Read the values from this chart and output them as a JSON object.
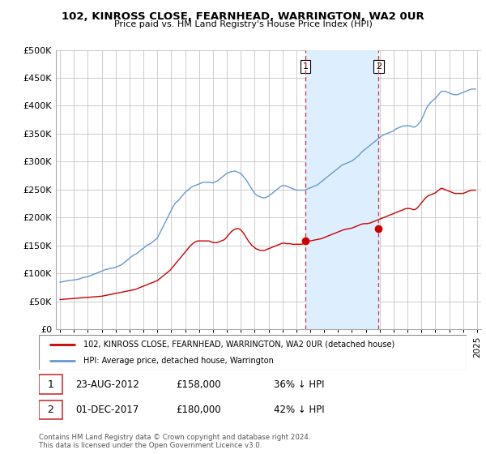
{
  "title": "102, KINROSS CLOSE, FEARNHEAD, WARRINGTON, WA2 0UR",
  "subtitle": "Price paid vs. HM Land Registry's House Price Index (HPI)",
  "legend_line1": "102, KINROSS CLOSE, FEARNHEAD, WARRINGTON, WA2 0UR (detached house)",
  "legend_line2": "HPI: Average price, detached house, Warrington",
  "annotation1_date": "23-AUG-2012",
  "annotation1_price": "£158,000",
  "annotation1_hpi": "36% ↓ HPI",
  "annotation2_date": "01-DEC-2017",
  "annotation2_price": "£180,000",
  "annotation2_hpi": "42% ↓ HPI",
  "footer": "Contains HM Land Registry data © Crown copyright and database right 2024.\nThis data is licensed under the Open Government Licence v3.0.",
  "red_color": "#cc0000",
  "blue_color": "#6699cc",
  "shade_color": "#ddeeff",
  "vline_color": "#cc3333",
  "point1_x": 2012.65,
  "point2_x": 2017.92,
  "point1_y": 158000,
  "point2_y": 180000,
  "xmin": 1994.7,
  "xmax": 2025.3,
  "ymin": 0,
  "ymax": 500000,
  "yticks": [
    0,
    50000,
    100000,
    150000,
    200000,
    250000,
    300000,
    350000,
    400000,
    450000,
    500000
  ],
  "ytick_labels": [
    "£0",
    "£50K",
    "£100K",
    "£150K",
    "£200K",
    "£250K",
    "£300K",
    "£350K",
    "£400K",
    "£450K",
    "£500K"
  ],
  "hpi_x": [
    1995.0,
    1995.1,
    1995.2,
    1995.3,
    1995.4,
    1995.5,
    1995.6,
    1995.7,
    1995.8,
    1995.9,
    1996.0,
    1996.1,
    1996.2,
    1996.3,
    1996.4,
    1996.5,
    1996.6,
    1996.7,
    1996.8,
    1996.9,
    1997.0,
    1997.1,
    1997.2,
    1997.3,
    1997.4,
    1997.5,
    1997.6,
    1997.7,
    1997.8,
    1997.9,
    1998.0,
    1998.1,
    1998.2,
    1998.3,
    1998.4,
    1998.5,
    1998.6,
    1998.7,
    1998.8,
    1998.9,
    1999.0,
    1999.1,
    1999.2,
    1999.3,
    1999.4,
    1999.5,
    1999.6,
    1999.7,
    1999.8,
    1999.9,
    2000.0,
    2000.1,
    2000.2,
    2000.3,
    2000.4,
    2000.5,
    2000.6,
    2000.7,
    2000.8,
    2000.9,
    2001.0,
    2001.1,
    2001.2,
    2001.3,
    2001.4,
    2001.5,
    2001.6,
    2001.7,
    2001.8,
    2001.9,
    2002.0,
    2002.1,
    2002.2,
    2002.3,
    2002.4,
    2002.5,
    2002.6,
    2002.7,
    2002.8,
    2002.9,
    2003.0,
    2003.1,
    2003.2,
    2003.3,
    2003.4,
    2003.5,
    2003.6,
    2003.7,
    2003.8,
    2003.9,
    2004.0,
    2004.1,
    2004.2,
    2004.3,
    2004.4,
    2004.5,
    2004.6,
    2004.7,
    2004.8,
    2004.9,
    2005.0,
    2005.1,
    2005.2,
    2005.3,
    2005.4,
    2005.5,
    2005.6,
    2005.7,
    2005.8,
    2005.9,
    2006.0,
    2006.1,
    2006.2,
    2006.3,
    2006.4,
    2006.5,
    2006.6,
    2006.7,
    2006.8,
    2006.9,
    2007.0,
    2007.1,
    2007.2,
    2007.3,
    2007.4,
    2007.5,
    2007.6,
    2007.7,
    2007.8,
    2007.9,
    2008.0,
    2008.1,
    2008.2,
    2008.3,
    2008.4,
    2008.5,
    2008.6,
    2008.7,
    2008.8,
    2008.9,
    2009.0,
    2009.1,
    2009.2,
    2009.3,
    2009.4,
    2009.5,
    2009.6,
    2009.7,
    2009.8,
    2009.9,
    2010.0,
    2010.1,
    2010.2,
    2010.3,
    2010.4,
    2010.5,
    2010.6,
    2010.7,
    2010.8,
    2010.9,
    2011.0,
    2011.1,
    2011.2,
    2011.3,
    2011.4,
    2011.5,
    2011.6,
    2011.7,
    2011.8,
    2011.9,
    2012.0,
    2012.1,
    2012.2,
    2012.3,
    2012.4,
    2012.5,
    2012.6,
    2012.7,
    2012.8,
    2012.9,
    2013.0,
    2013.1,
    2013.2,
    2013.3,
    2013.4,
    2013.5,
    2013.6,
    2013.7,
    2013.8,
    2013.9,
    2014.0,
    2014.1,
    2014.2,
    2014.3,
    2014.4,
    2014.5,
    2014.6,
    2014.7,
    2014.8,
    2014.9,
    2015.0,
    2015.1,
    2015.2,
    2015.3,
    2015.4,
    2015.5,
    2015.6,
    2015.7,
    2015.8,
    2015.9,
    2016.0,
    2016.1,
    2016.2,
    2016.3,
    2016.4,
    2016.5,
    2016.6,
    2016.7,
    2016.8,
    2016.9,
    2017.0,
    2017.1,
    2017.2,
    2017.3,
    2017.4,
    2017.5,
    2017.6,
    2017.7,
    2017.8,
    2017.9,
    2018.0,
    2018.1,
    2018.2,
    2018.3,
    2018.4,
    2018.5,
    2018.6,
    2018.7,
    2018.8,
    2018.9,
    2019.0,
    2019.1,
    2019.2,
    2019.3,
    2019.4,
    2019.5,
    2019.6,
    2019.7,
    2019.8,
    2019.9,
    2020.0,
    2020.1,
    2020.2,
    2020.3,
    2020.4,
    2020.5,
    2020.6,
    2020.7,
    2020.8,
    2020.9,
    2021.0,
    2021.1,
    2021.2,
    2021.3,
    2021.4,
    2021.5,
    2021.6,
    2021.7,
    2021.8,
    2021.9,
    2022.0,
    2022.1,
    2022.2,
    2022.3,
    2022.4,
    2022.5,
    2022.6,
    2022.7,
    2022.8,
    2022.9,
    2023.0,
    2023.1,
    2023.2,
    2023.3,
    2023.4,
    2023.5,
    2023.6,
    2023.7,
    2023.8,
    2023.9,
    2024.0,
    2024.1,
    2024.2,
    2024.3,
    2024.4,
    2024.5,
    2024.6,
    2024.7,
    2024.8,
    2024.9
  ],
  "hpi_y": [
    84000,
    84500,
    85000,
    85500,
    86000,
    86500,
    87000,
    87200,
    87500,
    87800,
    88000,
    88500,
    89000,
    89500,
    90000,
    91000,
    92000,
    92500,
    93000,
    93500,
    94000,
    95000,
    96000,
    97000,
    98000,
    99000,
    100000,
    101000,
    102000,
    103000,
    104000,
    105000,
    106000,
    107000,
    107500,
    108000,
    108500,
    109000,
    109500,
    110000,
    111000,
    112000,
    113000,
    114000,
    115000,
    117000,
    119000,
    121000,
    123000,
    125000,
    127000,
    129000,
    131000,
    133000,
    134000,
    135000,
    137000,
    139000,
    141000,
    143000,
    145000,
    147000,
    149000,
    151000,
    152000,
    153000,
    155000,
    157000,
    159000,
    161000,
    163000,
    168000,
    173000,
    178000,
    183000,
    188000,
    193000,
    198000,
    203000,
    208000,
    213000,
    218000,
    222000,
    226000,
    228000,
    230000,
    233000,
    236000,
    239000,
    242000,
    245000,
    247000,
    249000,
    251000,
    253000,
    255000,
    256000,
    257000,
    258000,
    259000,
    260000,
    261000,
    262000,
    263000,
    263000,
    263000,
    263000,
    263000,
    263000,
    262000,
    262000,
    263000,
    264000,
    265000,
    267000,
    269000,
    271000,
    273000,
    275000,
    277000,
    279000,
    280000,
    281000,
    282000,
    282000,
    283000,
    283000,
    282000,
    281000,
    280000,
    279000,
    276000,
    273000,
    270000,
    267000,
    263000,
    259000,
    255000,
    251000,
    247000,
    243000,
    241000,
    239000,
    238000,
    237000,
    236000,
    235000,
    235000,
    236000,
    237000,
    238000,
    240000,
    242000,
    244000,
    246000,
    248000,
    250000,
    252000,
    254000,
    256000,
    257000,
    257000,
    257000,
    256000,
    255000,
    254000,
    253000,
    252000,
    251000,
    250000,
    249000,
    249000,
    249000,
    249000,
    249000,
    249000,
    249000,
    250000,
    251000,
    252000,
    253000,
    254000,
    255000,
    256000,
    257000,
    258000,
    260000,
    262000,
    264000,
    266000,
    268000,
    270000,
    272000,
    274000,
    276000,
    278000,
    280000,
    282000,
    284000,
    286000,
    288000,
    290000,
    292000,
    294000,
    295000,
    296000,
    297000,
    298000,
    299000,
    300000,
    301000,
    303000,
    305000,
    307000,
    309000,
    311000,
    314000,
    317000,
    319000,
    321000,
    323000,
    325000,
    327000,
    329000,
    331000,
    333000,
    335000,
    337000,
    339000,
    341000,
    343000,
    345000,
    347000,
    348000,
    349000,
    350000,
    351000,
    352000,
    353000,
    354000,
    355000,
    357000,
    359000,
    360000,
    361000,
    362000,
    363000,
    364000,
    364000,
    364000,
    364000,
    364000,
    364000,
    363000,
    362000,
    362000,
    363000,
    365000,
    368000,
    371000,
    375000,
    380000,
    386000,
    392000,
    397000,
    401000,
    404000,
    407000,
    409000,
    411000,
    413000,
    416000,
    419000,
    422000,
    425000,
    426000,
    426000,
    426000,
    425000,
    424000,
    423000,
    422000,
    421000,
    420000,
    420000,
    420000,
    420000,
    421000,
    422000,
    423000,
    424000,
    425000,
    426000,
    427000,
    428000,
    429000,
    430000,
    430000,
    430000,
    430000
  ],
  "price_x": [
    1995.0,
    1995.1,
    1995.2,
    1995.3,
    1995.4,
    1995.5,
    1995.6,
    1995.7,
    1995.8,
    1995.9,
    1996.0,
    1996.1,
    1996.2,
    1996.3,
    1996.4,
    1996.5,
    1996.6,
    1996.7,
    1996.8,
    1996.9,
    1997.0,
    1997.1,
    1997.2,
    1997.3,
    1997.4,
    1997.5,
    1997.6,
    1997.7,
    1997.8,
    1997.9,
    1998.0,
    1998.1,
    1998.2,
    1998.3,
    1998.4,
    1998.5,
    1998.6,
    1998.7,
    1998.8,
    1998.9,
    1999.0,
    1999.1,
    1999.2,
    1999.3,
    1999.4,
    1999.5,
    1999.6,
    1999.7,
    1999.8,
    1999.9,
    2000.0,
    2000.1,
    2000.2,
    2000.3,
    2000.4,
    2000.5,
    2000.6,
    2000.7,
    2000.8,
    2000.9,
    2001.0,
    2001.1,
    2001.2,
    2001.3,
    2001.4,
    2001.5,
    2001.6,
    2001.7,
    2001.8,
    2001.9,
    2002.0,
    2002.1,
    2002.2,
    2002.3,
    2002.4,
    2002.5,
    2002.6,
    2002.7,
    2002.8,
    2002.9,
    2003.0,
    2003.1,
    2003.2,
    2003.3,
    2003.4,
    2003.5,
    2003.6,
    2003.7,
    2003.8,
    2003.9,
    2004.0,
    2004.1,
    2004.2,
    2004.3,
    2004.4,
    2004.5,
    2004.6,
    2004.7,
    2004.8,
    2004.9,
    2005.0,
    2005.1,
    2005.2,
    2005.3,
    2005.4,
    2005.5,
    2005.6,
    2005.7,
    2005.8,
    2005.9,
    2006.0,
    2006.1,
    2006.2,
    2006.3,
    2006.4,
    2006.5,
    2006.6,
    2006.7,
    2006.8,
    2006.9,
    2007.0,
    2007.1,
    2007.2,
    2007.3,
    2007.4,
    2007.5,
    2007.6,
    2007.7,
    2007.8,
    2007.9,
    2008.0,
    2008.1,
    2008.2,
    2008.3,
    2008.4,
    2008.5,
    2008.6,
    2008.7,
    2008.8,
    2008.9,
    2009.0,
    2009.1,
    2009.2,
    2009.3,
    2009.4,
    2009.5,
    2009.6,
    2009.7,
    2009.8,
    2009.9,
    2010.0,
    2010.1,
    2010.2,
    2010.3,
    2010.4,
    2010.5,
    2010.6,
    2010.7,
    2010.8,
    2010.9,
    2011.0,
    2011.1,
    2011.2,
    2011.3,
    2011.4,
    2011.5,
    2011.6,
    2011.7,
    2011.8,
    2011.9,
    2012.0,
    2012.1,
    2012.2,
    2012.3,
    2012.4,
    2012.5,
    2012.6,
    2012.7,
    2012.8,
    2012.9,
    2013.0,
    2013.1,
    2013.2,
    2013.3,
    2013.4,
    2013.5,
    2013.6,
    2013.7,
    2013.8,
    2013.9,
    2014.0,
    2014.1,
    2014.2,
    2014.3,
    2014.4,
    2014.5,
    2014.6,
    2014.7,
    2014.8,
    2014.9,
    2015.0,
    2015.1,
    2015.2,
    2015.3,
    2015.4,
    2015.5,
    2015.6,
    2015.7,
    2015.8,
    2015.9,
    2016.0,
    2016.1,
    2016.2,
    2016.3,
    2016.4,
    2016.5,
    2016.6,
    2016.7,
    2016.8,
    2016.9,
    2017.0,
    2017.1,
    2017.2,
    2017.3,
    2017.4,
    2017.5,
    2017.6,
    2017.7,
    2017.8,
    2017.9,
    2018.0,
    2018.1,
    2018.2,
    2018.3,
    2018.4,
    2018.5,
    2018.6,
    2018.7,
    2018.8,
    2018.9,
    2019.0,
    2019.1,
    2019.2,
    2019.3,
    2019.4,
    2019.5,
    2019.6,
    2019.7,
    2019.8,
    2019.9,
    2020.0,
    2020.1,
    2020.2,
    2020.3,
    2020.4,
    2020.5,
    2020.6,
    2020.7,
    2020.8,
    2020.9,
    2021.0,
    2021.1,
    2021.2,
    2021.3,
    2021.4,
    2021.5,
    2021.6,
    2021.7,
    2021.8,
    2021.9,
    2022.0,
    2022.1,
    2022.2,
    2022.3,
    2022.4,
    2022.5,
    2022.6,
    2022.7,
    2022.8,
    2022.9,
    2023.0,
    2023.1,
    2023.2,
    2023.3,
    2023.4,
    2023.5,
    2023.6,
    2023.7,
    2023.8,
    2023.9,
    2024.0,
    2024.1,
    2024.2,
    2024.3,
    2024.4,
    2024.5,
    2024.6,
    2024.7,
    2024.8,
    2024.9
  ],
  "price_y": [
    53000,
    53200,
    53400,
    53600,
    53800,
    54000,
    54200,
    54400,
    54600,
    54800,
    55000,
    55200,
    55400,
    55600,
    55800,
    56000,
    56200,
    56400,
    56600,
    56800,
    57000,
    57200,
    57400,
    57600,
    57800,
    58000,
    58200,
    58400,
    58600,
    58800,
    59000,
    59500,
    60000,
    60500,
    61000,
    61500,
    62000,
    62500,
    63000,
    63500,
    64000,
    64500,
    65000,
    65500,
    66000,
    66500,
    67000,
    67500,
    68000,
    68500,
    69000,
    69500,
    70000,
    70500,
    71000,
    72000,
    73000,
    74000,
    75000,
    76000,
    77000,
    78000,
    79000,
    80000,
    81000,
    82000,
    83000,
    84000,
    85000,
    86000,
    87000,
    89000,
    91000,
    93000,
    95000,
    97000,
    99000,
    101000,
    103000,
    105000,
    108000,
    111000,
    114000,
    117000,
    120000,
    123000,
    126000,
    129000,
    132000,
    135000,
    138000,
    141000,
    144000,
    147000,
    150000,
    152000,
    154000,
    156000,
    157000,
    158000,
    158000,
    158000,
    158000,
    158000,
    158000,
    158000,
    158000,
    158000,
    157000,
    156000,
    155000,
    155000,
    155000,
    155000,
    156000,
    157000,
    158000,
    159000,
    160000,
    162000,
    165000,
    168000,
    171000,
    174000,
    176000,
    178000,
    179000,
    180000,
    180000,
    179000,
    178000,
    175000,
    172000,
    168000,
    164000,
    160000,
    156000,
    153000,
    150000,
    148000,
    146000,
    144000,
    143000,
    142000,
    141000,
    141000,
    141000,
    141000,
    142000,
    143000,
    144000,
    145000,
    146000,
    147000,
    148000,
    149000,
    150000,
    151000,
    152000,
    153000,
    154000,
    154000,
    154000,
    153000,
    153000,
    153000,
    153000,
    152000,
    152000,
    152000,
    152000,
    152000,
    152000,
    152000,
    152000,
    153000,
    154000,
    155000,
    156000,
    157000,
    158000,
    158500,
    159000,
    159500,
    160000,
    160500,
    161000,
    161500,
    162000,
    163000,
    164000,
    165000,
    166000,
    167000,
    168000,
    169000,
    170000,
    171000,
    172000,
    173000,
    174000,
    175000,
    176000,
    177000,
    178000,
    178500,
    179000,
    179500,
    180000,
    180500,
    181000,
    182000,
    183000,
    184000,
    185000,
    186000,
    187000,
    188000,
    188500,
    189000,
    189000,
    189000,
    189500,
    190000,
    191000,
    192000,
    193000,
    194000,
    195000,
    196000,
    197000,
    198000,
    199000,
    200000,
    201000,
    202000,
    203000,
    204000,
    205000,
    206000,
    207000,
    208000,
    209000,
    210000,
    211000,
    212000,
    213000,
    214000,
    215000,
    216000,
    216000,
    216000,
    216000,
    215000,
    214000,
    214000,
    215000,
    217000,
    220000,
    223000,
    226000,
    229000,
    232000,
    235000,
    237000,
    239000,
    240000,
    241000,
    242000,
    243000,
    244000,
    246000,
    248000,
    250000,
    252000,
    252000,
    251000,
    250000,
    249000,
    248000,
    247000,
    246000,
    245000,
    244000,
    243000,
    243000,
    243000,
    243000,
    243000,
    243000,
    243000,
    244000,
    245000,
    246000,
    247000,
    248000,
    249000,
    249000,
    249000,
    249000
  ]
}
